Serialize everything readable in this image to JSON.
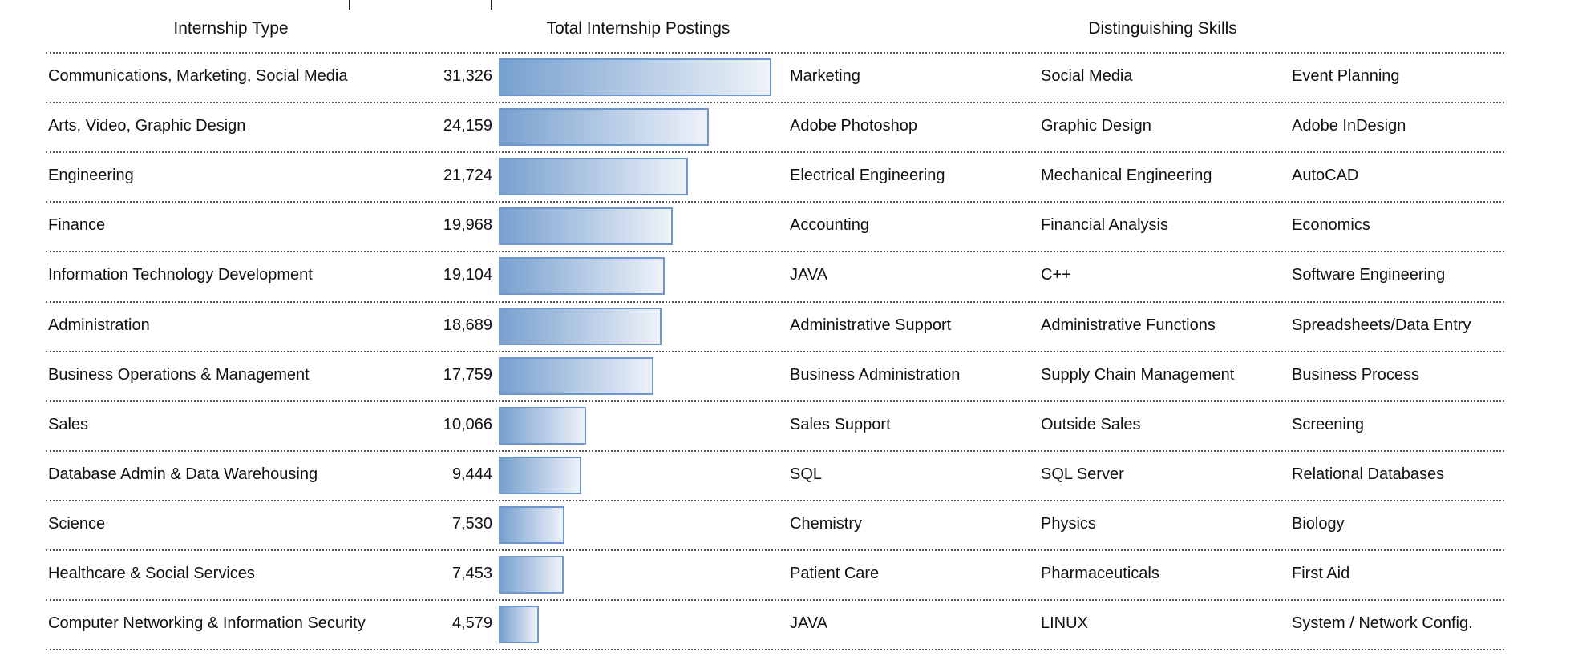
{
  "headers": {
    "type": "Internship Type",
    "postings": "Total Internship Postings",
    "skills": "Distinguishing Skills"
  },
  "colors": {
    "bar_start": "#78a1cf",
    "bar_end": "#eef2f9",
    "bar_border": "#6f96cc"
  },
  "chart_data": {
    "type": "table",
    "title": "",
    "max_value": 31326,
    "rows": [
      {
        "type": "Communications, Marketing, Social Media",
        "value": 31326,
        "label": "31,326",
        "skills": [
          "Marketing",
          "Social Media",
          "Event Planning"
        ]
      },
      {
        "type": "Arts, Video, Graphic Design",
        "value": 24159,
        "label": "24,159",
        "skills": [
          "Adobe Photoshop",
          "Graphic Design",
          "Adobe InDesign"
        ]
      },
      {
        "type": "Engineering",
        "value": 21724,
        "label": "21,724",
        "skills": [
          "Electrical Engineering",
          "Mechanical Engineering",
          "AutoCAD"
        ]
      },
      {
        "type": "Finance",
        "value": 19968,
        "label": "19,968",
        "skills": [
          "Accounting",
          "Financial Analysis",
          "Economics"
        ]
      },
      {
        "type": "Information Technology Development",
        "value": 19104,
        "label": "19,104",
        "skills": [
          "JAVA",
          "C++",
          "Software Engineering"
        ]
      },
      {
        "type": "Administration",
        "value": 18689,
        "label": "18,689",
        "skills": [
          "Administrative Support",
          "Administrative Functions",
          "Spreadsheets/Data Entry"
        ]
      },
      {
        "type": "Business Operations & Management",
        "value": 17759,
        "label": "17,759",
        "skills": [
          "Business Administration",
          "Supply Chain Management",
          "Business Process"
        ]
      },
      {
        "type": "Sales",
        "value": 10066,
        "label": "10,066",
        "skills": [
          "Sales Support",
          "Outside Sales",
          "Screening"
        ]
      },
      {
        "type": "Database Admin & Data Warehousing",
        "value": 9444,
        "label": "9,444",
        "skills": [
          "SQL",
          "SQL Server",
          "Relational Databases"
        ]
      },
      {
        "type": "Science",
        "value": 7530,
        "label": "7,530",
        "skills": [
          "Chemistry",
          "Physics",
          "Biology"
        ]
      },
      {
        "type": "Healthcare & Social Services",
        "value": 7453,
        "label": "7,453",
        "skills": [
          "Patient Care",
          "Pharmaceuticals",
          "First Aid"
        ]
      },
      {
        "type": "Computer Networking & Information Security",
        "value": 4579,
        "label": "4,579",
        "skills": [
          "JAVA",
          "LINUX",
          "System / Network Config."
        ]
      }
    ]
  }
}
